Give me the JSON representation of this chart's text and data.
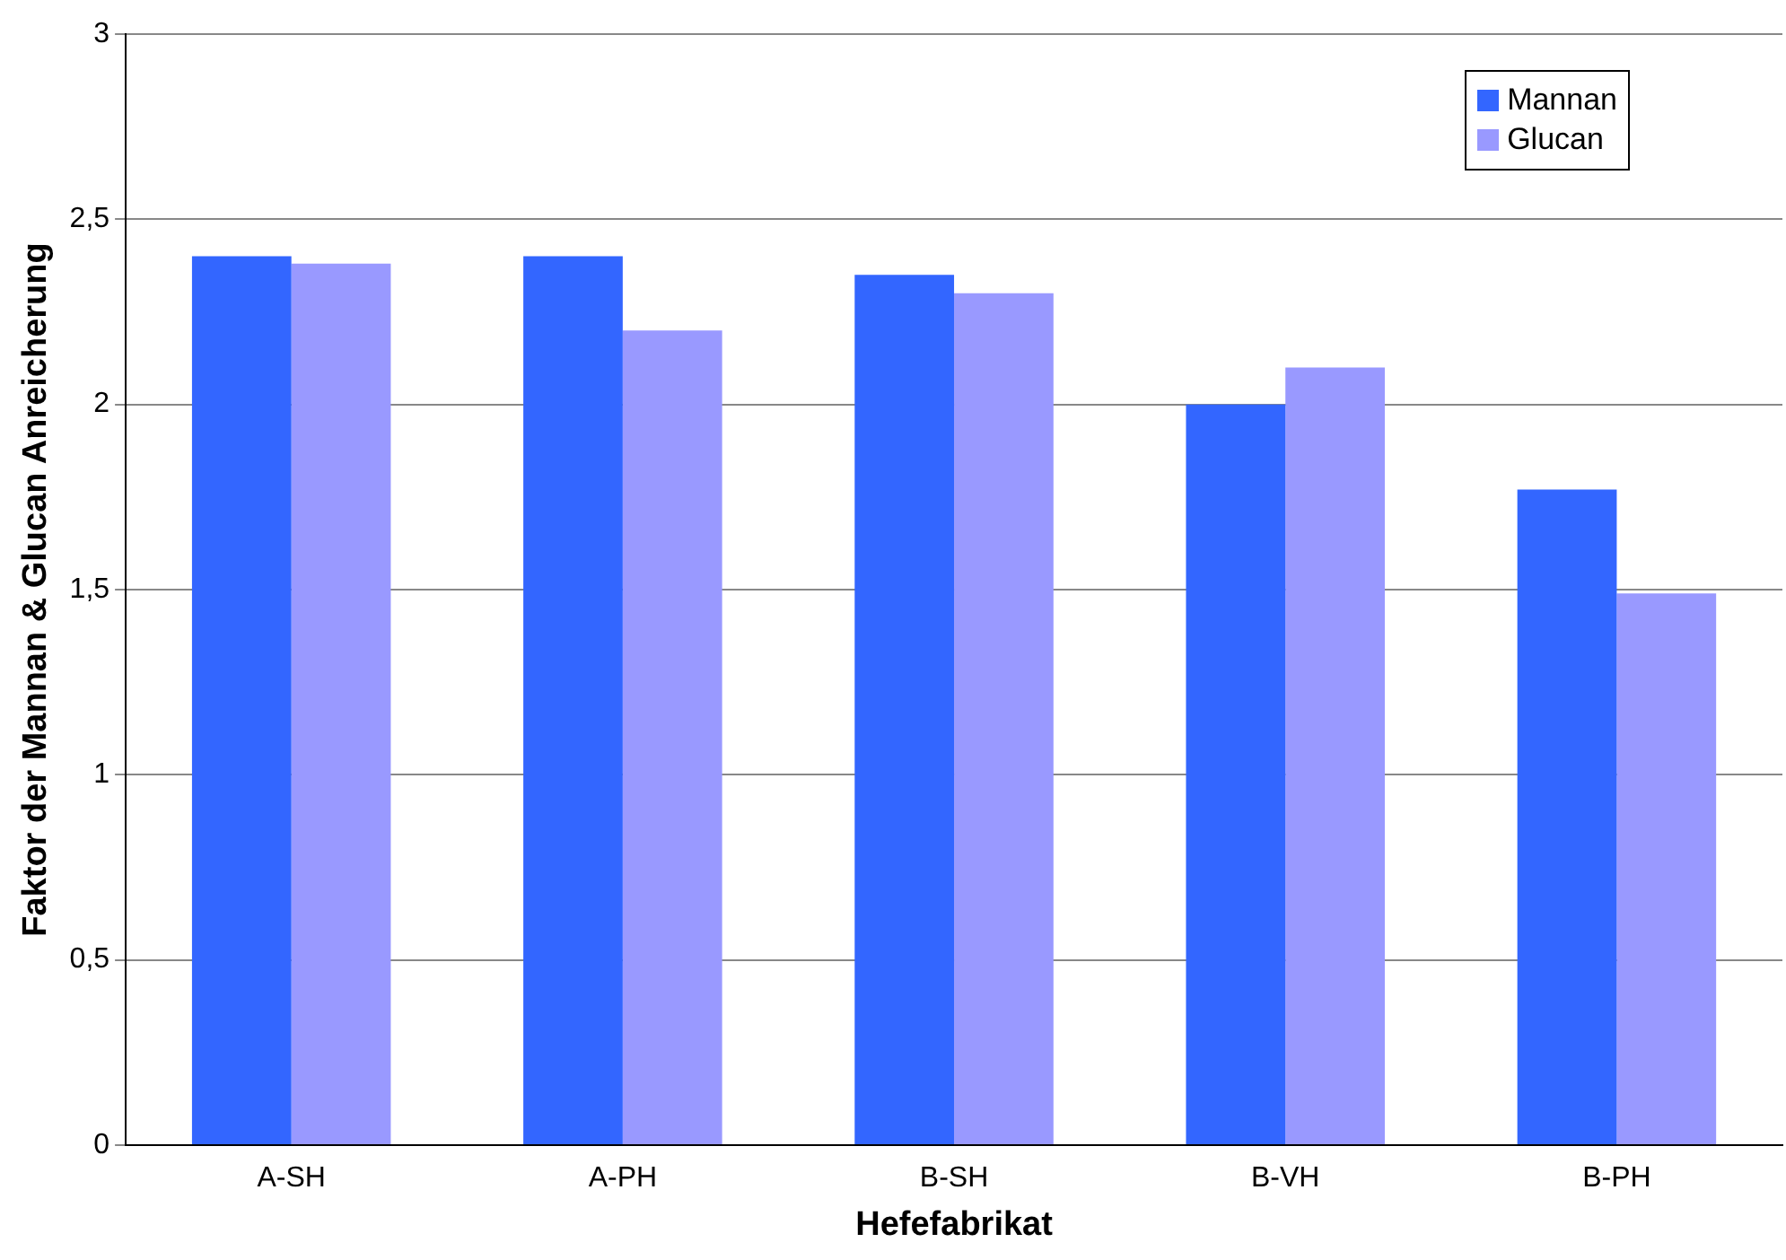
{
  "chart_data": {
    "type": "bar",
    "xlabel": "Hefefabrikat",
    "ylabel": "Faktor der Mannan & Glucan Anreicherung",
    "categories": [
      "A-SH",
      "A-PH",
      "B-SH",
      "B-VH",
      "B-PH"
    ],
    "series": [
      {
        "name": "Mannan",
        "color": "#3366ff",
        "values": [
          2.4,
          2.4,
          2.35,
          2.0,
          1.77
        ]
      },
      {
        "name": "Glucan",
        "color": "#9999ff",
        "values": [
          2.38,
          2.2,
          2.3,
          2.1,
          1.49
        ]
      }
    ],
    "ylim": [
      0,
      3
    ],
    "yticks": [
      0,
      {
        "value": 0.5,
        "label": "0,5"
      },
      1,
      {
        "value": 1.5,
        "label": "1,5"
      },
      2,
      {
        "value": 2.5,
        "label": "2,5"
      },
      3
    ],
    "grid": "y",
    "legend": "top right"
  }
}
